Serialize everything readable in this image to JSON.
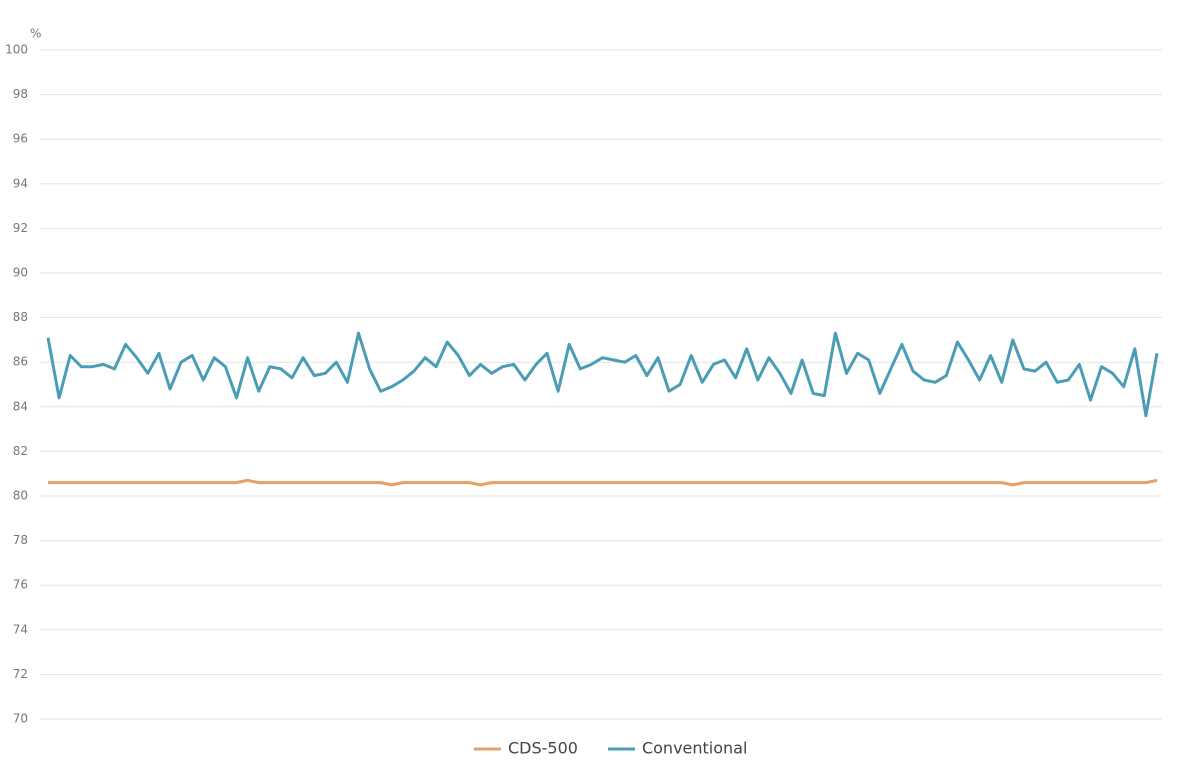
{
  "chart_data": {
    "type": "line",
    "y_unit": "%",
    "categories": [
      null,
      null,
      null,
      null,
      null,
      null,
      null,
      null,
      null,
      null,
      null,
      null,
      null,
      null,
      null,
      null,
      null,
      null,
      null,
      null,
      null,
      null,
      null,
      null,
      null,
      null,
      null,
      null,
      null,
      null,
      null,
      null,
      null,
      null,
      null,
      null,
      null,
      null,
      null,
      null,
      null,
      null,
      null,
      null,
      null,
      null,
      null,
      null,
      null,
      null,
      null,
      null,
      null,
      null,
      null,
      null,
      null,
      null,
      null,
      null,
      null,
      null,
      null,
      null,
      null,
      null,
      null,
      null,
      null,
      null,
      null,
      null,
      null,
      null,
      null,
      null,
      null,
      null,
      null,
      null,
      null,
      null,
      null,
      null,
      null,
      null,
      null,
      null,
      null,
      null,
      null,
      null,
      null,
      null,
      null,
      null,
      null,
      null,
      null,
      null,
      null
    ],
    "series": [
      {
        "name": "CDS-500",
        "color": "#e8a066",
        "values": [
          80.6,
          80.6,
          80.6,
          80.6,
          80.6,
          80.6,
          80.6,
          80.6,
          80.6,
          80.6,
          80.6,
          80.6,
          80.6,
          80.6,
          80.6,
          80.6,
          80.6,
          80.6,
          80.7,
          80.6,
          80.6,
          80.6,
          80.6,
          80.6,
          80.6,
          80.6,
          80.6,
          80.6,
          80.6,
          80.6,
          80.6,
          80.5,
          80.6,
          80.6,
          80.6,
          80.6,
          80.6,
          80.6,
          80.6,
          80.5,
          80.6,
          80.6,
          80.6,
          80.6,
          80.6,
          80.6,
          80.6,
          80.6,
          80.6,
          80.6,
          80.6,
          80.6,
          80.6,
          80.6,
          80.6,
          80.6,
          80.6,
          80.6,
          80.6,
          80.6,
          80.6,
          80.6,
          80.6,
          80.6,
          80.6,
          80.6,
          80.6,
          80.6,
          80.6,
          80.6,
          80.6,
          80.6,
          80.6,
          80.6,
          80.6,
          80.6,
          80.6,
          80.6,
          80.6,
          80.6,
          80.6,
          80.6,
          80.6,
          80.6,
          80.6,
          80.6,
          80.6,
          80.5,
          80.6,
          80.6,
          80.6,
          80.6,
          80.6,
          80.6,
          80.6,
          80.6,
          80.6,
          80.6,
          80.6,
          80.6,
          80.7
        ]
      },
      {
        "name": "Conventional",
        "color": "#4a9db5",
        "values": [
          87.1,
          84.4,
          86.3,
          85.8,
          85.8,
          85.9,
          85.7,
          86.8,
          86.2,
          85.5,
          86.4,
          84.8,
          86.0,
          86.3,
          85.2,
          86.2,
          85.8,
          84.4,
          86.2,
          84.7,
          85.8,
          85.7,
          85.3,
          86.2,
          85.4,
          85.5,
          86.0,
          85.1,
          87.3,
          85.7,
          84.7,
          84.9,
          85.2,
          85.6,
          86.2,
          85.8,
          86.9,
          86.3,
          85.4,
          85.9,
          85.5,
          85.8,
          85.9,
          85.2,
          85.9,
          86.4,
          84.7,
          86.8,
          85.7,
          85.9,
          86.2,
          86.1,
          86.0,
          86.3,
          85.4,
          86.2,
          84.7,
          85.0,
          86.3,
          85.1,
          85.9,
          86.1,
          85.3,
          86.6,
          85.2,
          86.2,
          85.5,
          84.6,
          86.1,
          84.6,
          84.5,
          87.3,
          85.5,
          86.4,
          86.1,
          84.6,
          85.7,
          86.8,
          85.6,
          85.2,
          85.1,
          85.4,
          86.9,
          86.1,
          85.2,
          86.3,
          85.1,
          87.0,
          85.7,
          85.6,
          86.0,
          85.1,
          85.2,
          85.9,
          84.3,
          85.8,
          85.5,
          84.9,
          86.6,
          83.6,
          86.4
        ]
      }
    ],
    "ylim": [
      70,
      100
    ],
    "yticks": [
      70,
      72,
      74,
      76,
      78,
      80,
      82,
      84,
      86,
      88,
      90,
      92,
      94,
      96,
      98,
      100
    ],
    "grid": true,
    "legend": "bottom"
  }
}
